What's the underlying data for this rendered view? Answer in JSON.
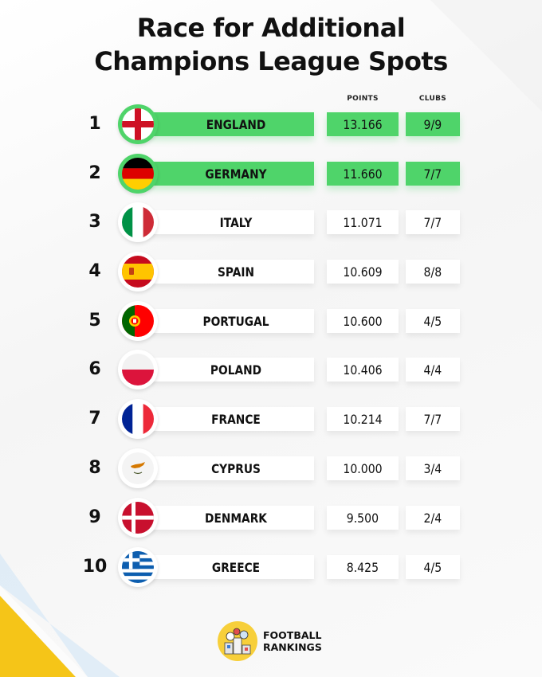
{
  "title": {
    "line1": "Race for Additional",
    "line2": "Champions League Spots"
  },
  "columns": {
    "points": "POINTS",
    "clubs": "CLUBS"
  },
  "rows": [
    {
      "rank": "1",
      "country": "ENGLAND",
      "points": "13.166",
      "clubs": "9/9",
      "highlighted": true,
      "flag": "england-flag-icon"
    },
    {
      "rank": "2",
      "country": "GERMANY",
      "points": "11.660",
      "clubs": "7/7",
      "highlighted": true,
      "flag": "germany-flag-icon"
    },
    {
      "rank": "3",
      "country": "ITALY",
      "points": "11.071",
      "clubs": "7/7",
      "highlighted": false,
      "flag": "italy-flag-icon"
    },
    {
      "rank": "4",
      "country": "SPAIN",
      "points": "10.609",
      "clubs": "8/8",
      "highlighted": false,
      "flag": "spain-flag-icon"
    },
    {
      "rank": "5",
      "country": "PORTUGAL",
      "points": "10.600",
      "clubs": "4/5",
      "highlighted": false,
      "flag": "portugal-flag-icon"
    },
    {
      "rank": "6",
      "country": "POLAND",
      "points": "10.406",
      "clubs": "4/4",
      "highlighted": false,
      "flag": "poland-flag-icon"
    },
    {
      "rank": "7",
      "country": "FRANCE",
      "points": "10.214",
      "clubs": "7/7",
      "highlighted": false,
      "flag": "france-flag-icon"
    },
    {
      "rank": "8",
      "country": "CYPRUS",
      "points": "10.000",
      "clubs": "3/4",
      "highlighted": false,
      "flag": "cyprus-flag-icon"
    },
    {
      "rank": "9",
      "country": "DENMARK",
      "points": "9.500",
      "clubs": "2/4",
      "highlighted": false,
      "flag": "denmark-flag-icon"
    },
    {
      "rank": "10",
      "country": "GREECE",
      "points": "8.425",
      "clubs": "4/5",
      "highlighted": false,
      "flag": "greece-flag-icon"
    }
  ],
  "brand": {
    "line1": "FOOTBALL",
    "line2": "RANKINGS",
    "logo_icon": "football-rankings-logo-icon"
  },
  "colors": {
    "highlight": "#4fd46a",
    "logo_yellow": "#f7cf3a",
    "stripe_yellow": "#f5c518",
    "stripe_blue": "#cfe3f5"
  }
}
